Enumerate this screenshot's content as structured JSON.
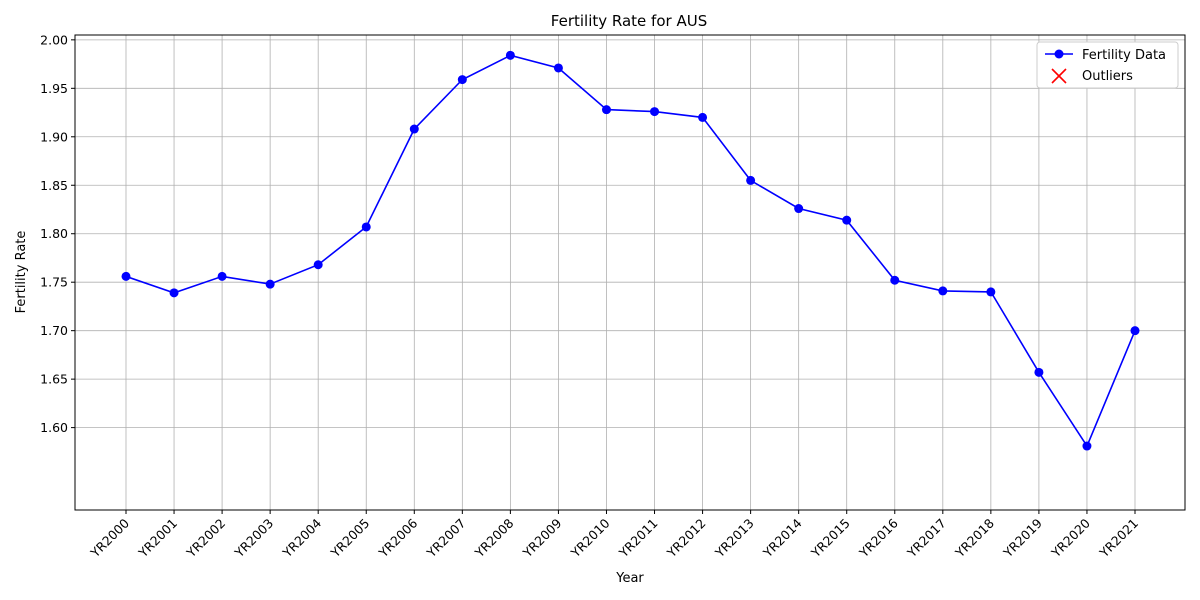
{
  "chart_data": {
    "type": "line",
    "title": "Fertility Rate for AUS",
    "xlabel": "Year",
    "ylabel": "Fertility Rate",
    "categories": [
      "YR2000",
      "YR2001",
      "YR2002",
      "YR2003",
      "YR2004",
      "YR2005",
      "YR2006",
      "YR2007",
      "YR2008",
      "YR2009",
      "YR2010",
      "YR2011",
      "YR2012",
      "YR2013",
      "YR2014",
      "YR2015",
      "YR2016",
      "YR2017",
      "YR2018",
      "YR2019",
      "YR2020",
      "YR2021"
    ],
    "series": [
      {
        "name": "Fertility Data",
        "color": "#0000ff",
        "values": [
          1.756,
          1.739,
          1.756,
          1.748,
          1.768,
          1.807,
          1.908,
          1.959,
          1.984,
          1.971,
          1.928,
          1.926,
          1.92,
          1.855,
          1.826,
          1.814,
          1.752,
          1.741,
          1.74,
          1.657,
          1.581,
          1.7
        ]
      }
    ],
    "outliers": {
      "name": "Outliers",
      "color": "#ff0000",
      "points": []
    },
    "ylim": [
      1.515,
      2.005
    ],
    "yticks": [
      "1.60",
      "1.65",
      "1.70",
      "1.75",
      "1.80",
      "1.85",
      "1.90",
      "1.95",
      "2.00"
    ],
    "grid": true,
    "legend": "top-right"
  }
}
